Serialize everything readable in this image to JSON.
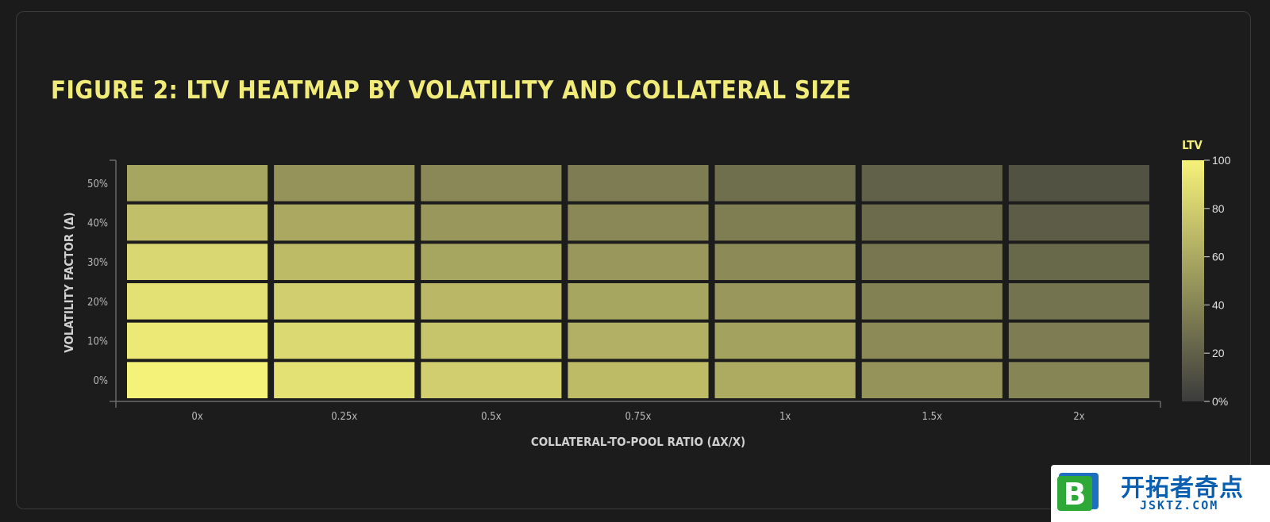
{
  "title": "FIGURE 2: LTV HEATMAP BY VOLATILITY AND COLLATERAL SIZE",
  "chart_data": {
    "type": "heatmap",
    "title": "FIGURE 2: LTV HEATMAP BY VOLATILITY AND COLLATERAL SIZE",
    "xlabel": "COLLATERAL-TO-POOL RATIO (ΔX/X)",
    "ylabel": "VOLATILITY FACTOR (Δ)",
    "x_categories": [
      "0x",
      "0.25x",
      "0.5x",
      "0.75x",
      "1x",
      "1.5x",
      "2x"
    ],
    "y_categories": [
      "0%",
      "10%",
      "20%",
      "30%",
      "40%",
      "50%"
    ],
    "values": [
      [
        100,
        90,
        80,
        70,
        61,
        48,
        40
      ],
      [
        95,
        86,
        75,
        64,
        56,
        43,
        35
      ],
      [
        90,
        80,
        68,
        58,
        50,
        38,
        30
      ],
      [
        85,
        70,
        58,
        50,
        43,
        32,
        24
      ],
      [
        72,
        60,
        50,
        42,
        36,
        26,
        18
      ],
      [
        58,
        48,
        42,
        35,
        28,
        20,
        12
      ]
    ],
    "colorbar": {
      "label": "LTV",
      "ticks": [
        "0%",
        "20",
        "40",
        "60",
        "80",
        "100"
      ],
      "range": [
        0,
        100
      ],
      "color_low": "#3c3c3c",
      "color_high": "#f5f27a"
    },
    "grid": false,
    "legend": "right"
  },
  "watermark": {
    "text": "开拓者奇点",
    "subtext": "JSKTZ.COM",
    "mark": "B"
  }
}
